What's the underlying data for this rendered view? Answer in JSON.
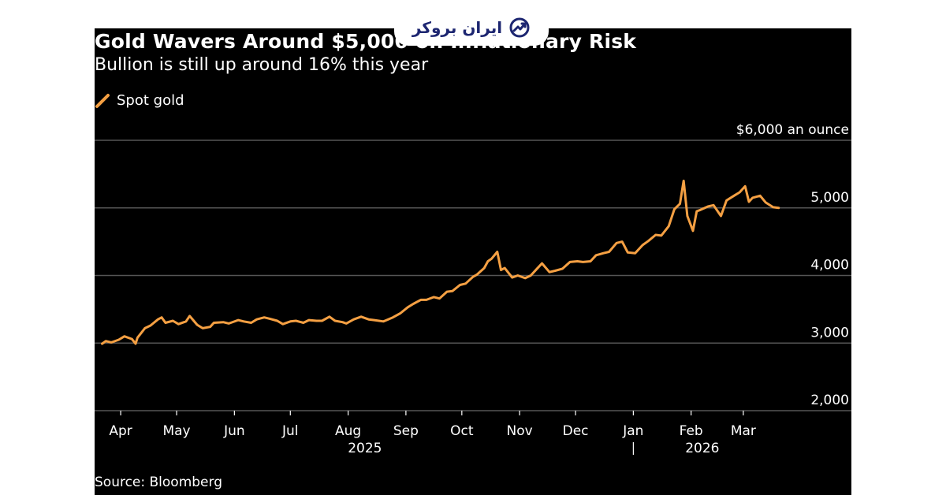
{
  "watermark": {
    "text": "ایران بروکر",
    "icon": "trend-chart-icon",
    "color": "#1d2671"
  },
  "colors": {
    "background": "#000000",
    "line": "#f5a043",
    "grid": "#555555",
    "text": "#ffffff"
  },
  "chart_data": {
    "type": "line",
    "title": "Gold Wavers Around $5,000 on Inflationary Risk",
    "subtitle": "Bullion is still up around 16% this year",
    "source": "Source: Bloomberg",
    "legend": "top-left",
    "ylim": [
      2000,
      6000
    ],
    "y_ticks": [
      {
        "value": 6000,
        "label": "$6,000 an ounce"
      },
      {
        "value": 5000,
        "label": "5,000"
      },
      {
        "value": 4000,
        "label": "4,000"
      },
      {
        "value": 3000,
        "label": "3,000"
      },
      {
        "value": 2000,
        "label": "2,000"
      }
    ],
    "x_range": [
      "2025-03-18",
      "2026-03-26"
    ],
    "x_month_ticks": [
      {
        "date": "2025-04-01",
        "label": "Apr"
      },
      {
        "date": "2025-05-01",
        "label": "May"
      },
      {
        "date": "2025-06-01",
        "label": "Jun"
      },
      {
        "date": "2025-07-01",
        "label": "Jul"
      },
      {
        "date": "2025-08-01",
        "label": "Aug"
      },
      {
        "date": "2025-09-01",
        "label": "Sep"
      },
      {
        "date": "2025-10-01",
        "label": "Oct"
      },
      {
        "date": "2025-11-01",
        "label": "Nov"
      },
      {
        "date": "2025-12-01",
        "label": "Dec"
      },
      {
        "date": "2026-01-01",
        "label": "Jan"
      },
      {
        "date": "2026-02-01",
        "label": "Feb"
      },
      {
        "date": "2026-03-01",
        "label": "Mar"
      }
    ],
    "year_labels": [
      {
        "date": "2025-08-10",
        "label": "2025"
      },
      {
        "date": "2026-02-07",
        "label": "2026"
      }
    ],
    "year_separator": "2026-01-01",
    "series": [
      {
        "name": "Spot gold",
        "color": "#f5a043",
        "points": [
          [
            "2025-03-22",
            2990
          ],
          [
            "2025-03-24",
            3030
          ],
          [
            "2025-03-27",
            3010
          ],
          [
            "2025-03-31",
            3050
          ],
          [
            "2025-04-03",
            3100
          ],
          [
            "2025-04-07",
            3060
          ],
          [
            "2025-04-09",
            2990
          ],
          [
            "2025-04-10",
            3080
          ],
          [
            "2025-04-14",
            3220
          ],
          [
            "2025-04-17",
            3260
          ],
          [
            "2025-04-21",
            3350
          ],
          [
            "2025-04-23",
            3380
          ],
          [
            "2025-04-25",
            3300
          ],
          [
            "2025-04-29",
            3330
          ],
          [
            "2025-05-02",
            3280
          ],
          [
            "2025-05-06",
            3320
          ],
          [
            "2025-05-08",
            3400
          ],
          [
            "2025-05-12",
            3270
          ],
          [
            "2025-05-15",
            3220
          ],
          [
            "2025-05-19",
            3240
          ],
          [
            "2025-05-21",
            3300
          ],
          [
            "2025-05-26",
            3310
          ],
          [
            "2025-05-29",
            3290
          ],
          [
            "2025-06-03",
            3340
          ],
          [
            "2025-06-06",
            3320
          ],
          [
            "2025-06-10",
            3300
          ],
          [
            "2025-06-13",
            3350
          ],
          [
            "2025-06-17",
            3380
          ],
          [
            "2025-06-20",
            3360
          ],
          [
            "2025-06-24",
            3330
          ],
          [
            "2025-06-27",
            3280
          ],
          [
            "2025-07-01",
            3320
          ],
          [
            "2025-07-04",
            3330
          ],
          [
            "2025-07-08",
            3300
          ],
          [
            "2025-07-11",
            3340
          ],
          [
            "2025-07-15",
            3330
          ],
          [
            "2025-07-18",
            3330
          ],
          [
            "2025-07-22",
            3390
          ],
          [
            "2025-07-25",
            3330
          ],
          [
            "2025-07-29",
            3310
          ],
          [
            "2025-07-31",
            3290
          ],
          [
            "2025-08-04",
            3350
          ],
          [
            "2025-08-08",
            3390
          ],
          [
            "2025-08-12",
            3350
          ],
          [
            "2025-08-15",
            3340
          ],
          [
            "2025-08-20",
            3320
          ],
          [
            "2025-08-25",
            3380
          ],
          [
            "2025-08-29",
            3440
          ],
          [
            "2025-09-02",
            3530
          ],
          [
            "2025-09-05",
            3580
          ],
          [
            "2025-09-09",
            3640
          ],
          [
            "2025-09-12",
            3640
          ],
          [
            "2025-09-16",
            3680
          ],
          [
            "2025-09-19",
            3660
          ],
          [
            "2025-09-23",
            3760
          ],
          [
            "2025-09-26",
            3770
          ],
          [
            "2025-09-30",
            3860
          ],
          [
            "2025-10-03",
            3880
          ],
          [
            "2025-10-07",
            3980
          ],
          [
            "2025-10-09",
            4010
          ],
          [
            "2025-10-13",
            4110
          ],
          [
            "2025-10-15",
            4210
          ],
          [
            "2025-10-17",
            4250
          ],
          [
            "2025-10-20",
            4350
          ],
          [
            "2025-10-22",
            4080
          ],
          [
            "2025-10-24",
            4110
          ],
          [
            "2025-10-28",
            3970
          ],
          [
            "2025-10-31",
            4000
          ],
          [
            "2025-11-04",
            3960
          ],
          [
            "2025-11-07",
            4000
          ],
          [
            "2025-11-11",
            4120
          ],
          [
            "2025-11-13",
            4180
          ],
          [
            "2025-11-17",
            4050
          ],
          [
            "2025-11-20",
            4070
          ],
          [
            "2025-11-24",
            4100
          ],
          [
            "2025-11-28",
            4200
          ],
          [
            "2025-12-02",
            4210
          ],
          [
            "2025-12-05",
            4200
          ],
          [
            "2025-12-09",
            4210
          ],
          [
            "2025-12-12",
            4300
          ],
          [
            "2025-12-16",
            4330
          ],
          [
            "2025-12-19",
            4350
          ],
          [
            "2025-12-23",
            4480
          ],
          [
            "2025-12-26",
            4500
          ],
          [
            "2025-12-29",
            4340
          ],
          [
            "2026-01-02",
            4330
          ],
          [
            "2026-01-06",
            4450
          ],
          [
            "2026-01-09",
            4510
          ],
          [
            "2026-01-13",
            4600
          ],
          [
            "2026-01-16",
            4590
          ],
          [
            "2026-01-20",
            4730
          ],
          [
            "2026-01-23",
            4980
          ],
          [
            "2026-01-26",
            5060
          ],
          [
            "2026-01-28",
            5400
          ],
          [
            "2026-01-30",
            4880
          ],
          [
            "2026-02-02",
            4660
          ],
          [
            "2026-02-04",
            4950
          ],
          [
            "2026-02-06",
            4970
          ],
          [
            "2026-02-10",
            5020
          ],
          [
            "2026-02-13",
            5040
          ],
          [
            "2026-02-17",
            4880
          ],
          [
            "2026-02-20",
            5110
          ],
          [
            "2026-02-24",
            5180
          ],
          [
            "2026-02-27",
            5230
          ],
          [
            "2026-03-02",
            5320
          ],
          [
            "2026-03-04",
            5090
          ],
          [
            "2026-03-06",
            5150
          ],
          [
            "2026-03-10",
            5180
          ],
          [
            "2026-03-13",
            5080
          ],
          [
            "2026-03-17",
            5010
          ],
          [
            "2026-03-20",
            5000
          ]
        ]
      }
    ]
  }
}
